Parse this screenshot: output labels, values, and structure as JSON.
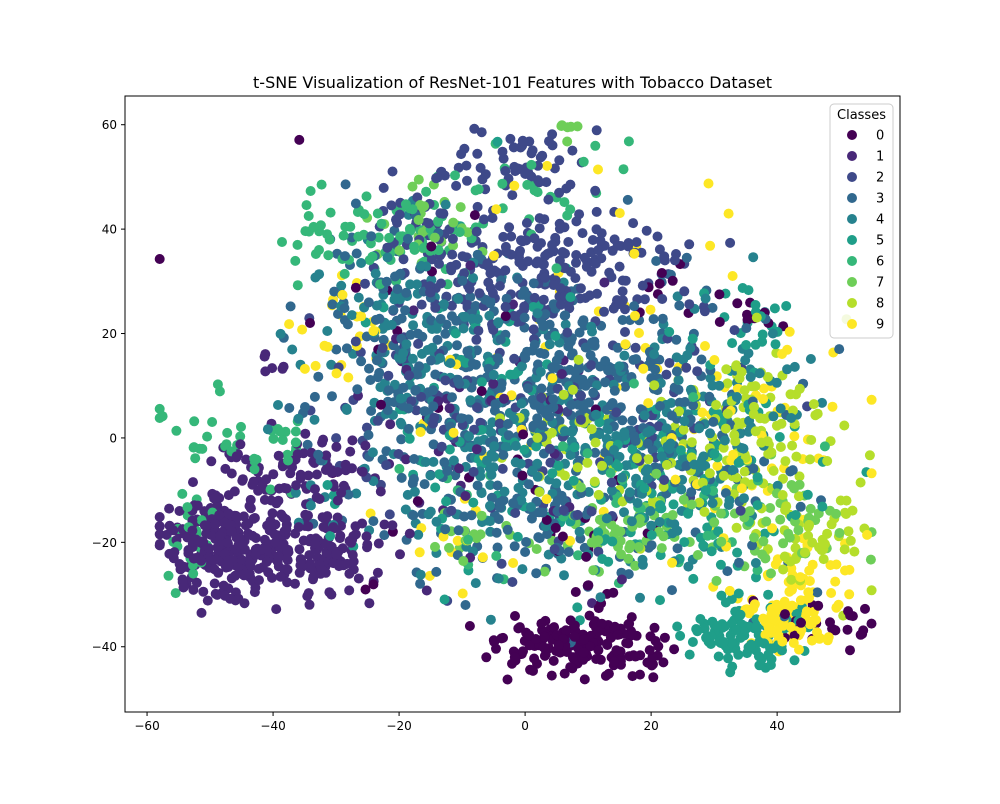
{
  "chart_data": {
    "type": "scatter",
    "title": "t-SNE Visualization of ResNet-101 Features with Tobacco Dataset",
    "xlabel": "",
    "ylabel": "",
    "xlim": [
      -63.5,
      59.5
    ],
    "ylim": [
      -52.5,
      65.5
    ],
    "xticks": [
      -60,
      -40,
      -20,
      0,
      20,
      40
    ],
    "yticks": [
      -40,
      -20,
      0,
      20,
      40,
      60
    ],
    "grid": false,
    "legend": {
      "title": "Classes",
      "placement": "top-right"
    },
    "colormap": "viridis",
    "series": [
      {
        "name": "0",
        "color": "#440154",
        "clusters": [
          {
            "cx": 8,
            "cy": -40,
            "sx": 6,
            "sy": 3,
            "n": 150
          },
          {
            "cx": 17,
            "cy": -41,
            "sx": 3,
            "sy": 2.5,
            "n": 30
          },
          {
            "cx": 48,
            "cy": -36,
            "sx": 4,
            "sy": 2.5,
            "n": 25
          },
          {
            "cx": 36,
            "cy": 23,
            "sx": 3,
            "sy": 2,
            "n": 10
          },
          {
            "cx": 22,
            "cy": 28,
            "sx": 3,
            "sy": 3,
            "n": 8
          },
          {
            "cx": -10,
            "cy": 5,
            "sx": 15,
            "sy": 20,
            "n": 25
          },
          {
            "cx": 7,
            "cy": -18,
            "sx": 8,
            "sy": 6,
            "n": 15
          },
          {
            "cx": 11,
            "cy": -28,
            "sx": 2,
            "sy": 2,
            "n": 6
          },
          {
            "cx": -25,
            "cy": -30,
            "sx": 1,
            "sy": 1,
            "n": 2
          }
        ]
      },
      {
        "name": "1",
        "color": "#482878",
        "clusters": [
          {
            "cx": -48,
            "cy": -21,
            "sx": 5,
            "sy": 5,
            "n": 260
          },
          {
            "cx": -34,
            "cy": -22,
            "sx": 5,
            "sy": 4,
            "n": 110
          },
          {
            "cx": -34,
            "cy": -6,
            "sx": 4,
            "sy": 3,
            "n": 55
          },
          {
            "cx": -44,
            "cy": -8,
            "sx": 3,
            "sy": 3,
            "n": 30
          },
          {
            "cx": -28,
            "cy": -20,
            "sx": 3,
            "sy": 3,
            "n": 25
          },
          {
            "cx": -10,
            "cy": 0,
            "sx": 15,
            "sy": 15,
            "n": 45
          },
          {
            "cx": -40,
            "cy": 14,
            "sx": 2,
            "sy": 1.5,
            "n": 6
          }
        ]
      },
      {
        "name": "2",
        "color": "#3e4989",
        "clusters": [
          {
            "cx": -1,
            "cy": 53,
            "sx": 5,
            "sy": 3.5,
            "n": 55
          },
          {
            "cx": 0,
            "cy": 34,
            "sx": 9,
            "sy": 7,
            "n": 180
          },
          {
            "cx": 14,
            "cy": 32,
            "sx": 6,
            "sy": 6,
            "n": 60
          },
          {
            "cx": -18,
            "cy": 42,
            "sx": 4,
            "sy": 4,
            "n": 25
          },
          {
            "cx": 5,
            "cy": 5,
            "sx": 14,
            "sy": 15,
            "n": 110
          },
          {
            "cx": -20,
            "cy": 10,
            "sx": 6,
            "sy": 8,
            "n": 40
          }
        ]
      },
      {
        "name": "3",
        "color": "#31688e",
        "clusters": [
          {
            "cx": -10,
            "cy": 10,
            "sx": 12,
            "sy": 12,
            "n": 220
          },
          {
            "cx": 10,
            "cy": 10,
            "sx": 10,
            "sy": 12,
            "n": 200
          },
          {
            "cx": 0,
            "cy": -15,
            "sx": 12,
            "sy": 6,
            "n": 80
          },
          {
            "cx": 30,
            "cy": -5,
            "sx": 8,
            "sy": 12,
            "n": 60
          },
          {
            "cx": -25,
            "cy": 30,
            "sx": 5,
            "sy": 8,
            "n": 40
          }
        ]
      },
      {
        "name": "4",
        "color": "#26828e",
        "clusters": [
          {
            "cx": -5,
            "cy": 0,
            "sx": 14,
            "sy": 13,
            "n": 200
          },
          {
            "cx": 20,
            "cy": -5,
            "sx": 10,
            "sy": 10,
            "n": 150
          },
          {
            "cx": -18,
            "cy": 22,
            "sx": 8,
            "sy": 8,
            "n": 90
          },
          {
            "cx": 35,
            "cy": 10,
            "sx": 6,
            "sy": 10,
            "n": 50
          }
        ]
      },
      {
        "name": "5",
        "color": "#1f9e89",
        "clusters": [
          {
            "cx": 35,
            "cy": -38,
            "sx": 5,
            "sy": 3,
            "n": 100
          },
          {
            "cx": 25,
            "cy": -10,
            "sx": 10,
            "sy": 10,
            "n": 110
          },
          {
            "cx": -8,
            "cy": 0,
            "sx": 12,
            "sy": 15,
            "n": 80
          },
          {
            "cx": 35,
            "cy": 20,
            "sx": 5,
            "sy": 5,
            "n": 25
          }
        ]
      },
      {
        "name": "6",
        "color": "#35b779",
        "clusters": [
          {
            "cx": -22,
            "cy": 40,
            "sx": 8,
            "sy": 4,
            "n": 90
          },
          {
            "cx": -45,
            "cy": 0,
            "sx": 6,
            "sy": 4,
            "n": 40
          },
          {
            "cx": -53,
            "cy": -18,
            "sx": 2,
            "sy": 6,
            "n": 25
          },
          {
            "cx": 5,
            "cy": 50,
            "sx": 6,
            "sy": 6,
            "n": 20
          },
          {
            "cx": 15,
            "cy": -15,
            "sx": 15,
            "sy": 8,
            "n": 40
          }
        ]
      },
      {
        "name": "7",
        "color": "#6ece58",
        "clusters": [
          {
            "cx": 15,
            "cy": -18,
            "sx": 6,
            "sy": 5,
            "n": 60
          },
          {
            "cx": 40,
            "cy": -15,
            "sx": 7,
            "sy": 5,
            "n": 50
          },
          {
            "cx": -15,
            "cy": 40,
            "sx": 5,
            "sy": 4,
            "n": 30
          },
          {
            "cx": 7,
            "cy": 59,
            "sx": 1,
            "sy": 1,
            "n": 6
          },
          {
            "cx": -10,
            "cy": -20,
            "sx": 3,
            "sy": 2,
            "n": 15
          }
        ]
      },
      {
        "name": "8",
        "color": "#b5de2b",
        "clusters": [
          {
            "cx": 35,
            "cy": 0,
            "sx": 7,
            "sy": 8,
            "n": 120
          },
          {
            "cx": 45,
            "cy": -20,
            "sx": 5,
            "sy": 5,
            "n": 50
          },
          {
            "cx": 5,
            "cy": 0,
            "sx": 4,
            "sy": 5,
            "n": 30
          },
          {
            "cx": 22,
            "cy": -8,
            "sx": 6,
            "sy": 6,
            "n": 30
          }
        ]
      },
      {
        "name": "9",
        "color": "#fde725",
        "clusters": [
          {
            "cx": 42,
            "cy": -35,
            "sx": 3.5,
            "sy": 3,
            "n": 90
          },
          {
            "cx": 45,
            "cy": -25,
            "sx": 4,
            "sy": 4,
            "n": 30
          },
          {
            "cx": 35,
            "cy": 5,
            "sx": 10,
            "sy": 15,
            "n": 60
          },
          {
            "cx": -30,
            "cy": 22,
            "sx": 5,
            "sy": 6,
            "n": 25
          },
          {
            "cx": 5,
            "cy": 20,
            "sx": 15,
            "sy": 20,
            "n": 40
          },
          {
            "cx": -10,
            "cy": -20,
            "sx": 8,
            "sy": 4,
            "n": 15
          }
        ]
      }
    ]
  }
}
